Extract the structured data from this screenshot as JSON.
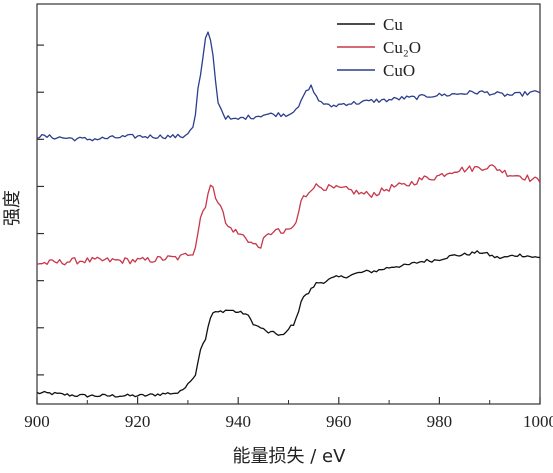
{
  "chart_data": {
    "type": "line",
    "xlabel": "能量损失 / eV",
    "ylabel": "强度",
    "xlim": [
      900,
      1000
    ],
    "x_ticks": [
      900,
      920,
      940,
      960,
      980,
      1000
    ],
    "y_ticks_count": 8,
    "y_tick_labels": "none",
    "grid": false,
    "legend_position": "top-right",
    "legend": [
      {
        "name": "Cu",
        "color": "#111111"
      },
      {
        "name": "Cu₂O",
        "color": "#c8374a"
      },
      {
        "name": "CuO",
        "color": "#2c3e8c"
      }
    ],
    "series": [
      {
        "name": "Cu",
        "color": "#111111",
        "x": [
          900,
          910,
          920,
          928,
          931,
          933,
          935,
          938,
          941,
          944,
          946,
          949,
          951,
          953,
          956,
          960,
          966,
          972,
          978,
          984,
          988,
          992,
          996,
          1000
        ],
        "y": [
          0.04,
          0.03,
          0.03,
          0.04,
          0.09,
          0.22,
          0.33,
          0.34,
          0.33,
          0.28,
          0.26,
          0.25,
          0.29,
          0.39,
          0.44,
          0.46,
          0.48,
          0.5,
          0.52,
          0.54,
          0.55,
          0.53,
          0.54,
          0.53
        ]
      },
      {
        "name": "Cu₂O",
        "color": "#c8374a",
        "x": [
          900,
          910,
          920,
          928,
          931,
          933,
          934.5,
          936,
          938,
          941,
          943,
          944,
          946,
          947,
          949,
          951,
          953,
          955,
          960,
          966,
          972,
          978,
          984,
          990,
          995,
          1000
        ],
        "y": [
          0.51,
          0.52,
          0.52,
          0.53,
          0.55,
          0.7,
          0.79,
          0.74,
          0.64,
          0.61,
          0.58,
          0.57,
          0.61,
          0.63,
          0.62,
          0.64,
          0.75,
          0.79,
          0.78,
          0.76,
          0.79,
          0.82,
          0.85,
          0.86,
          0.83,
          0.81
        ]
      },
      {
        "name": "CuO",
        "color": "#2c3e8c",
        "x": [
          900,
          910,
          920,
          929,
          931,
          932.5,
          933.5,
          934.2,
          935,
          936,
          937.5,
          939,
          942,
          946,
          950,
          952,
          953.5,
          954.5,
          956,
          958,
          962,
          968,
          974,
          980,
          988,
          994,
          1000
        ],
        "y": [
          0.97,
          0.96,
          0.97,
          0.97,
          1.0,
          1.19,
          1.32,
          1.35,
          1.26,
          1.09,
          1.04,
          1.03,
          1.04,
          1.05,
          1.05,
          1.08,
          1.13,
          1.15,
          1.1,
          1.08,
          1.09,
          1.1,
          1.11,
          1.12,
          1.13,
          1.12,
          1.13
        ]
      }
    ]
  }
}
